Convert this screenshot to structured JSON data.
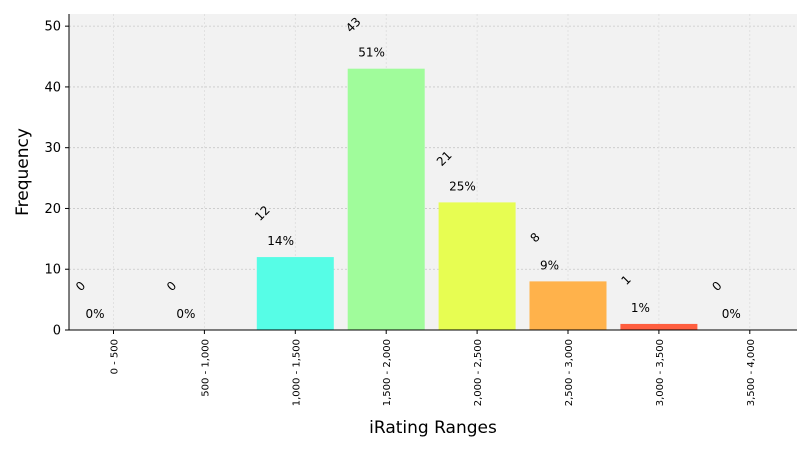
{
  "chart_data": {
    "type": "bar",
    "title": "",
    "xlabel": "iRating Ranges",
    "ylabel": "Frequency",
    "categories": [
      "0 - 500",
      "500 - 1,000",
      "1,000 - 1,500",
      "1,500 - 2,000",
      "2,000 - 2,500",
      "2,500 - 3,000",
      "3,000 - 3,500",
      "3,500 - 4,000"
    ],
    "values": [
      0,
      0,
      12,
      43,
      21,
      8,
      1,
      0
    ],
    "percent_labels": [
      "0%",
      "0%",
      "14%",
      "51%",
      "25%",
      "9%",
      "1%",
      "0%"
    ],
    "count_labels": [
      "0",
      "0",
      "12",
      "43",
      "21",
      "8",
      "1",
      "0"
    ],
    "bar_colors": [
      "#56c8ff",
      "#56c8ff",
      "#56fde6",
      "#a0fc9b",
      "#e7fd52",
      "#ffb24b",
      "#ff5e3f",
      "#cccccc"
    ],
    "ylim": [
      0,
      52
    ],
    "yticks": [
      0,
      10,
      20,
      30,
      40,
      50
    ],
    "grid": true,
    "background": "#f2f2f2",
    "count_label_color": "#ff0000",
    "percent_label_color": "#008000",
    "legend": "none"
  }
}
